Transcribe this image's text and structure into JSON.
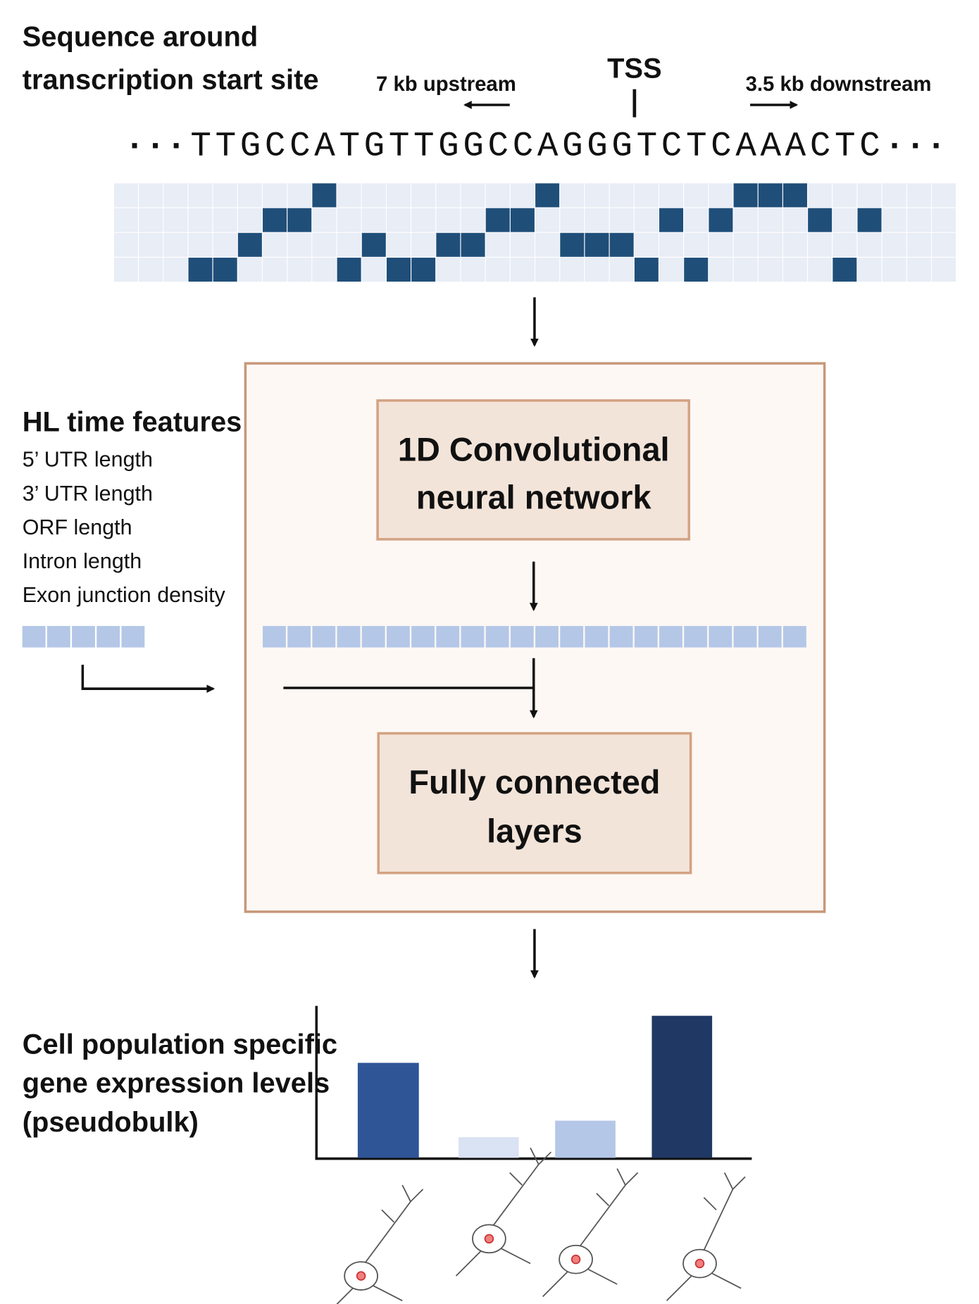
{
  "header": {
    "title_lines": [
      "Sequence around",
      "transcription start site"
    ]
  },
  "sequence": {
    "upstream": "7 kb upstream",
    "tss": "TSS",
    "downstream": "3.5 kb downstream",
    "bases": "TTGCCATGTTGGCCAGGGTCTCAAACTC",
    "ellipsis": "···"
  },
  "features": {
    "title": "HL time features",
    "items": [
      "5’ UTR length",
      "3’ UTR length",
      "ORF length",
      "Intron length",
      "Exon junction density"
    ]
  },
  "model": {
    "cnn_lines": [
      "1D Convolutional",
      "neural network"
    ],
    "fc_lines": [
      "Fully connected",
      "layers"
    ]
  },
  "output": {
    "lines": [
      "Cell population specific",
      "gene expression levels",
      "(pseudobulk)"
    ]
  }
}
